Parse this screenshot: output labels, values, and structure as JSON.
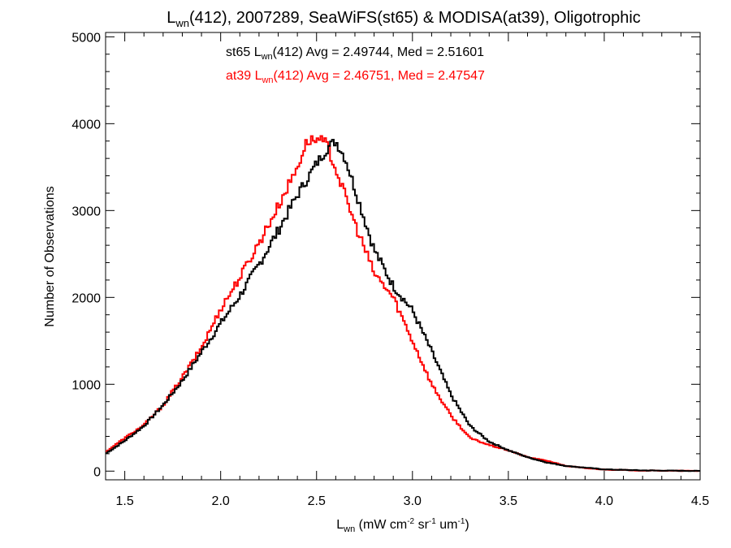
{
  "chart_data": {
    "type": "line",
    "title": {
      "main": "L",
      "sub": "wn",
      "rest": "(412), 2007289, SeaWiFS(st65) & MODISA(at39), Oligotrophic"
    },
    "xlabel": {
      "main": "L",
      "sub": "wn",
      "rest": " (mW cm",
      "sup1": "-2",
      "mid": " sr",
      "sup2": "-1",
      "mid2": " um",
      "sup3": "-1",
      "end": ")"
    },
    "ylabel": "Number of Observations",
    "xlim": [
      1.4,
      4.5
    ],
    "ylim": [
      -100,
      5050
    ],
    "x_ticks": [
      "1.5",
      "2.0",
      "2.5",
      "3.0",
      "3.5",
      "4.0",
      "4.5"
    ],
    "y_ticks": [
      "0",
      "1000",
      "2000",
      "3000",
      "4000",
      "5000"
    ],
    "grid": false,
    "colors": {
      "st65": "#000000",
      "at39": "#ff0000"
    },
    "annotations": [
      {
        "prefix": "st65 L",
        "sub": "wn",
        "rest": "(412) Avg = 2.49744, Med = 2.51601",
        "color": "#000000"
      },
      {
        "prefix": "at39 L",
        "sub": "wn",
        "rest": "(412) Avg = 2.46751, Med = 2.47547",
        "color": "#ff0000"
      }
    ],
    "series": [
      {
        "color": "#000000",
        "x": [
          1.4,
          1.5,
          1.6,
          1.7,
          1.8,
          1.9,
          2.0,
          2.1,
          2.2,
          2.3,
          2.4,
          2.5,
          2.56,
          2.6,
          2.65,
          2.7,
          2.8,
          2.9,
          3.0,
          3.1,
          3.2,
          3.3,
          3.4,
          3.5,
          3.6,
          3.7,
          3.8,
          3.9,
          4.0,
          4.2,
          4.5
        ],
        "y": [
          200,
          350,
          520,
          760,
          1040,
          1370,
          1700,
          2020,
          2380,
          2770,
          3180,
          3540,
          3730,
          3800,
          3600,
          3250,
          2550,
          2130,
          1850,
          1380,
          880,
          520,
          340,
          240,
          160,
          100,
          60,
          40,
          20,
          8,
          2
        ]
      },
      {
        "color": "#ff0000",
        "x": [
          1.4,
          1.5,
          1.6,
          1.7,
          1.8,
          1.9,
          2.0,
          2.1,
          2.2,
          2.3,
          2.4,
          2.45,
          2.5,
          2.55,
          2.6,
          2.7,
          2.8,
          2.9,
          3.0,
          3.1,
          3.2,
          3.3,
          3.4,
          3.5,
          3.6,
          3.7,
          3.8,
          3.9,
          4.0,
          4.2,
          4.5
        ],
        "y": [
          220,
          380,
          530,
          760,
          1080,
          1420,
          1870,
          2230,
          2630,
          3050,
          3500,
          3800,
          3820,
          3780,
          3480,
          2850,
          2280,
          2000,
          1500,
          1000,
          640,
          380,
          300,
          240,
          160,
          120,
          60,
          35,
          18,
          6,
          2
        ]
      }
    ]
  }
}
